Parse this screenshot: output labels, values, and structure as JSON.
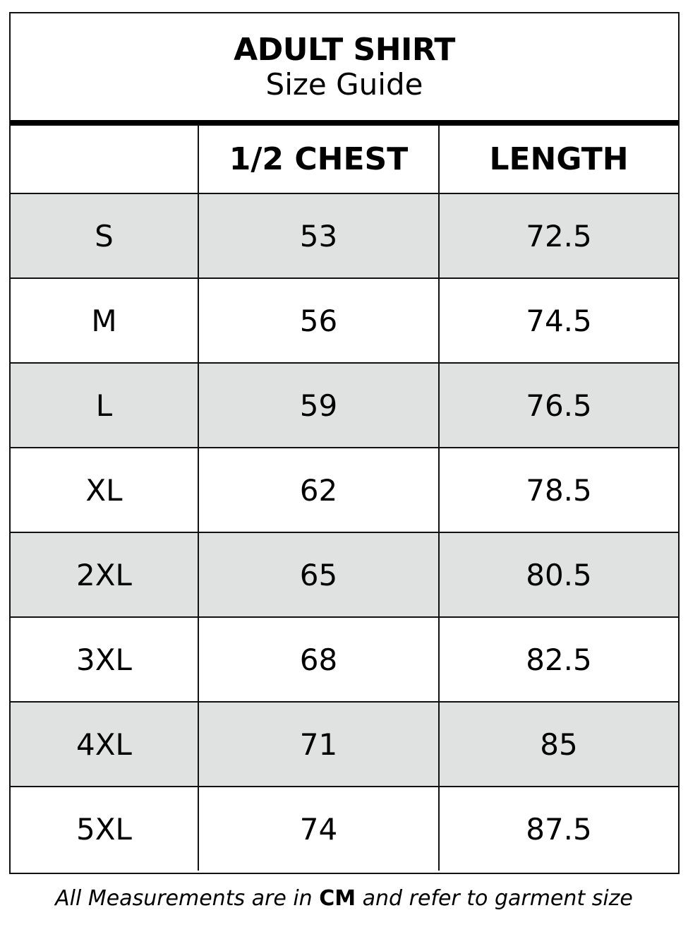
{
  "title": "ADULT SHIRT",
  "subtitle": "Size Guide",
  "columns": [
    "",
    "1/2 CHEST",
    "LENGTH"
  ],
  "rows": [
    {
      "size": "S",
      "chest": "53",
      "length": "72.5"
    },
    {
      "size": "M",
      "chest": "56",
      "length": "74.5"
    },
    {
      "size": "L",
      "chest": "59",
      "length": "76.5"
    },
    {
      "size": "XL",
      "chest": "62",
      "length": "78.5"
    },
    {
      "size": "2XL",
      "chest": "65",
      "length": "80.5"
    },
    {
      "size": "3XL",
      "chest": "68",
      "length": "82.5"
    },
    {
      "size": "4XL",
      "chest": "71",
      "length": "85"
    },
    {
      "size": "5XL",
      "chest": "74",
      "length": "87.5"
    }
  ],
  "note": {
    "before": "All Measurements are in ",
    "unit": "CM",
    "after": " and refer to garment size"
  },
  "colors": {
    "shaded_row": "#e0e2e1",
    "border": "#111111"
  }
}
